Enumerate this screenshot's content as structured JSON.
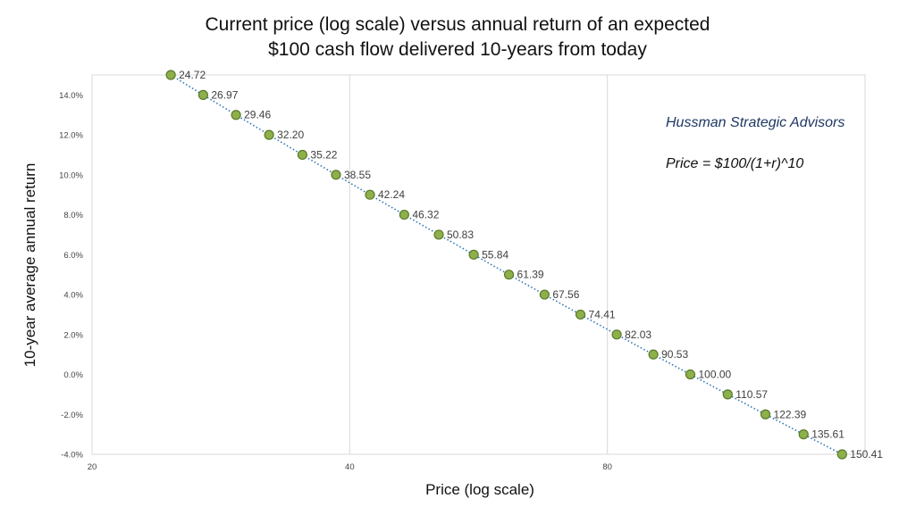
{
  "chart_data": {
    "type": "scatter",
    "title_line1": "Current price (log scale) versus annual return of an expected",
    "title_line2": "$100 cash flow delivered 10-years from today",
    "xlabel": "Price (log scale)",
    "ylabel": "10-year average annual return",
    "x_scale": "log",
    "xlim": [
      20,
      160
    ],
    "ylim": [
      -0.04,
      0.15
    ],
    "x_ticks": [
      20,
      40,
      80
    ],
    "x_tick_labels": [
      "20",
      "40",
      "80"
    ],
    "y_ticks": [
      -0.04,
      -0.02,
      0.0,
      0.02,
      0.04,
      0.06,
      0.08,
      0.1,
      0.12,
      0.14
    ],
    "y_tick_labels": [
      "-4.0%",
      "-2.0%",
      "0.0%",
      "2.0%",
      "4.0%",
      "6.0%",
      "8.0%",
      "10.0%",
      "12.0%",
      "14.0%"
    ],
    "grid": "vertical gridlines at x ticks",
    "trendline": "dotted blue",
    "point_color": "#8db04b",
    "trendline_color": "#2e75b6",
    "series": [
      {
        "x": [
          24.72,
          26.97,
          29.46,
          32.2,
          35.22,
          38.55,
          42.24,
          46.32,
          50.83,
          55.84,
          61.39,
          67.56,
          74.41,
          82.03,
          90.53,
          100.0,
          110.57,
          122.39,
          135.61,
          150.41
        ],
        "y": [
          0.15,
          0.14,
          0.13,
          0.12,
          0.11,
          0.1,
          0.09,
          0.08,
          0.07,
          0.06,
          0.05,
          0.04,
          0.03,
          0.02,
          0.01,
          0.0,
          -0.01,
          -0.02,
          -0.03,
          -0.04
        ],
        "point_labels": [
          "24.72",
          "26.97",
          "29.46",
          "32.20",
          "35.22",
          "38.55",
          "42.24",
          "46.32",
          "50.83",
          "55.84",
          "61.39",
          "67.56",
          "74.41",
          "82.03",
          "90.53",
          "100.00",
          "110.57",
          "122.39",
          "135.61",
          "150.41"
        ]
      }
    ],
    "annotations": {
      "brand": "Hussman Strategic Advisors",
      "formula": "Price = $100/(1+r)^10"
    }
  }
}
